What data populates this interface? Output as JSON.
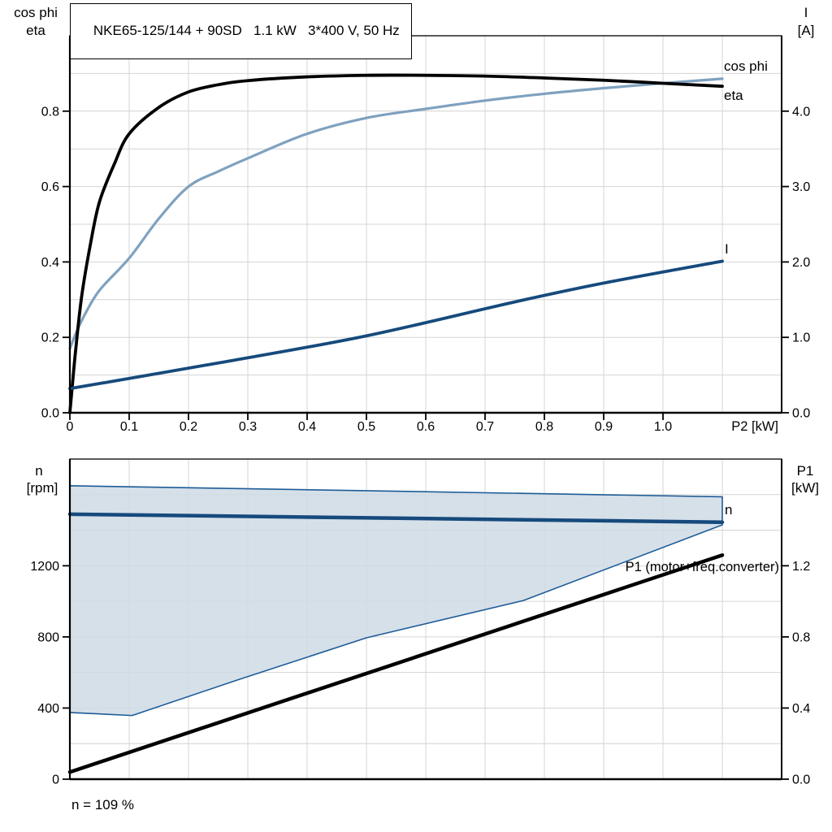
{
  "title": "NKE65-125/144 + 90SD   1.1 kW   3*400 V, 50 Hz",
  "footnote": "n = 109 %",
  "colors": {
    "black": "#000000",
    "navy": "#164a7c",
    "steel_blue": "#7fa1bf",
    "region_fill": "#cfdae5",
    "region_stroke": "#1d5c97",
    "grid": "#d4d4d4"
  },
  "chart_data": [
    {
      "type": "line",
      "axis_corner_labels": {
        "left_line1": "cos phi",
        "left_line2": "eta",
        "right_line1": "I",
        "right_line2": "[A]"
      },
      "x_axis": {
        "label": "P2 [kW]",
        "min": 0,
        "max": 1.2,
        "grid_step": 0.1,
        "ticks": [
          0,
          0.1,
          0.2,
          0.3,
          0.4,
          0.5,
          0.6,
          0.7,
          0.8,
          0.9,
          1.0
        ],
        "tick_labels": [
          "0",
          "0.1",
          "0.2",
          "0.3",
          "0.4",
          "0.5",
          "0.6",
          "0.7",
          "0.8",
          "0.9",
          "1.0"
        ]
      },
      "y_left": {
        "label": "cos phi / eta",
        "min": 0,
        "max": 1.0,
        "grid_step": 0.1,
        "ticks": [
          0,
          0.2,
          0.4,
          0.6,
          0.8
        ],
        "tick_labels": [
          "0.0",
          "0.2",
          "0.4",
          "0.6",
          "0.8"
        ]
      },
      "y_right": {
        "label": "I [A]",
        "min": 0,
        "max": 5.0,
        "ticks": [
          0,
          1,
          2,
          3,
          4
        ],
        "tick_labels": [
          "0.0",
          "1.0",
          "2.0",
          "3.0",
          "4.0"
        ]
      },
      "series": [
        {
          "name": "cos phi",
          "label": "cos phi",
          "color": "#7fa1bf",
          "width": 3.2,
          "axis": "left",
          "smooth": true,
          "x": [
            0,
            0.01,
            0.025,
            0.05,
            0.1,
            0.15,
            0.2,
            0.25,
            0.3,
            0.4,
            0.5,
            0.6,
            0.7,
            0.8,
            0.9,
            1.0,
            1.1
          ],
          "y": [
            0.17,
            0.21,
            0.26,
            0.325,
            0.41,
            0.515,
            0.6,
            0.64,
            0.675,
            0.74,
            0.782,
            0.806,
            0.828,
            0.846,
            0.861,
            0.874,
            0.886
          ]
        },
        {
          "name": "eta",
          "label": "eta",
          "color": "#000000",
          "width": 3.8,
          "axis": "left",
          "smooth": true,
          "x": [
            0,
            0.004,
            0.01,
            0.02,
            0.035,
            0.05,
            0.075,
            0.1,
            0.15,
            0.2,
            0.25,
            0.3,
            0.4,
            0.5,
            0.6,
            0.7,
            0.8,
            0.9,
            1.0,
            1.1
          ],
          "y": [
            0,
            0.07,
            0.17,
            0.31,
            0.45,
            0.56,
            0.66,
            0.74,
            0.81,
            0.851,
            0.87,
            0.881,
            0.891,
            0.895,
            0.895,
            0.893,
            0.888,
            0.882,
            0.874,
            0.866
          ]
        },
        {
          "name": "I",
          "label": "I",
          "color": "#164a7c",
          "width": 3.8,
          "axis": "right",
          "smooth": true,
          "x": [
            0,
            0.25,
            0.5,
            0.75,
            0.9,
            1.1
          ],
          "y": [
            0.32,
            0.66,
            1.02,
            1.47,
            1.72,
            2.01
          ]
        }
      ]
    },
    {
      "type": "line",
      "axis_corner_labels": {
        "left_line1": "n",
        "left_line2": "[rpm]",
        "right_line1": "P1",
        "right_line2": "[kW]"
      },
      "x_axis": {
        "label": "",
        "min": 0,
        "max": 1.2,
        "grid_step": 0.1,
        "ticks": [],
        "tick_labels": []
      },
      "y_left": {
        "label": "n [rpm]",
        "min": 0,
        "max": 1800,
        "grid_step": 200,
        "ticks": [
          0,
          400,
          800,
          1200
        ],
        "tick_labels": [
          "0",
          "400",
          "800",
          "1200"
        ]
      },
      "y_right": {
        "label": "P1 [kW]",
        "min": 0,
        "max": 1.8,
        "ticks": [
          0,
          0.4,
          0.8,
          1.2
        ],
        "tick_labels": [
          "0.0",
          "0.4",
          "0.8",
          "1.2"
        ]
      },
      "region": {
        "name": "speed-control-range",
        "fill": "#cfdae5",
        "stroke": "#1d5c97",
        "axis": "left",
        "top": [
          [
            0,
            1650
          ],
          [
            1.1,
            1588
          ]
        ],
        "bottom": [
          [
            0,
            375
          ],
          [
            0.105,
            358
          ],
          [
            0.28,
            555
          ],
          [
            0.5,
            795
          ],
          [
            0.765,
            1005
          ],
          [
            1.1,
            1430
          ]
        ]
      },
      "series": [
        {
          "name": "n",
          "label": "n",
          "color": "#164a7c",
          "width": 4.5,
          "axis": "left",
          "smooth": false,
          "x": [
            0,
            1.1
          ],
          "y": [
            1490,
            1445
          ]
        },
        {
          "name": "P1",
          "label": "P1 (motor+freq.converter)",
          "color": "#000000",
          "width": 4.5,
          "axis": "right",
          "smooth": false,
          "x": [
            0,
            1.1
          ],
          "y": [
            0.04,
            1.26
          ]
        }
      ]
    }
  ]
}
